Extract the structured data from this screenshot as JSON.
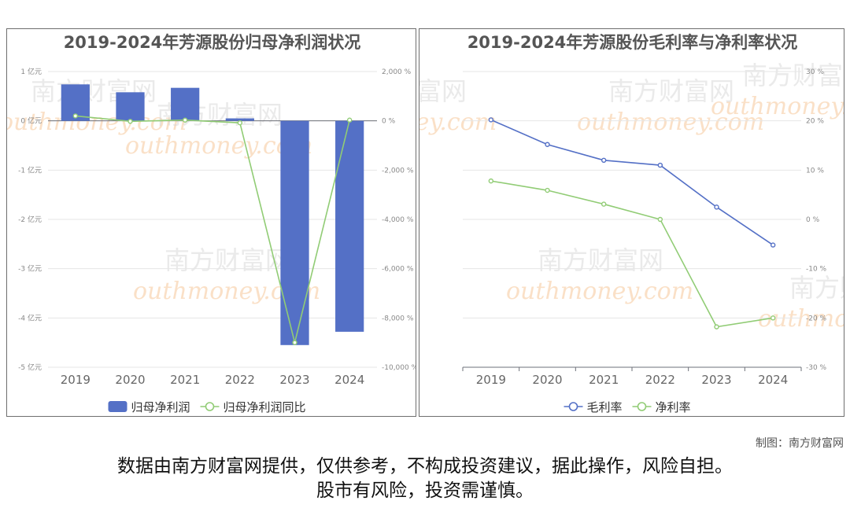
{
  "credit": "制图：南方财富网",
  "disclaimer_line1": "数据由南方财富网提供，仅供参考，不构成投资建议，据此操作，风险自担。",
  "disclaimer_line2": "股市有风险，投资需谨慎。",
  "watermark": {
    "cn": "南方财富网",
    "en": "outhmoney.com"
  },
  "chart_data": [
    {
      "type": "bar",
      "title": "2019-2024年芳源股份归母净利润状况",
      "categories": [
        "2019",
        "2020",
        "2021",
        "2022",
        "2023",
        "2024"
      ],
      "series": [
        {
          "name": "归母净利润",
          "kind": "bar",
          "axis": "left",
          "color": "#5470c6",
          "values": [
            0.74,
            0.58,
            0.67,
            0.05,
            -4.55,
            -4.28
          ]
        },
        {
          "name": "归母净利润同比",
          "kind": "line",
          "axis": "right",
          "color": "#91cc75",
          "values": [
            200,
            -20,
            30,
            -80,
            -9000,
            30
          ]
        }
      ],
      "left_axis": {
        "min": -5,
        "max": 1,
        "ticks": [
          {
            "v": 1,
            "label": "1 亿元"
          },
          {
            "v": 0,
            "label": "0 亿元"
          },
          {
            "v": -1,
            "label": "-1 亿元"
          },
          {
            "v": -2,
            "label": "-2 亿元"
          },
          {
            "v": -3,
            "label": "-3 亿元"
          },
          {
            "v": -4,
            "label": "-4 亿元"
          },
          {
            "v": -5,
            "label": "-5 亿元"
          }
        ]
      },
      "right_axis": {
        "min": -10000,
        "max": 2000,
        "ticks": [
          {
            "v": 2000,
            "label": "2,000 %"
          },
          {
            "v": 0,
            "label": "0 %"
          },
          {
            "v": -2000,
            "label": "-2,000 %"
          },
          {
            "v": -4000,
            "label": "-4,000 %"
          },
          {
            "v": -6000,
            "label": "-6,000 %"
          },
          {
            "v": -8000,
            "label": "-8,000 %"
          },
          {
            "v": -10000,
            "label": "-10,000 %"
          }
        ]
      },
      "grid": true,
      "legend": "bottom"
    },
    {
      "type": "line",
      "title": "2019-2024年芳源股份毛利率与净利率状况",
      "categories": [
        "2019",
        "2020",
        "2021",
        "2022",
        "2023",
        "2024"
      ],
      "series": [
        {
          "name": "毛利率",
          "kind": "line",
          "axis": "right",
          "color": "#5470c6",
          "values": [
            20.2,
            15.2,
            12.0,
            11.0,
            2.5,
            -5.2
          ]
        },
        {
          "name": "净利率",
          "kind": "line",
          "axis": "right",
          "color": "#91cc75",
          "values": [
            7.8,
            5.9,
            3.1,
            0.0,
            -21.8,
            -20.0
          ]
        }
      ],
      "right_axis": {
        "min": -30,
        "max": 30,
        "ticks": [
          {
            "v": 30,
            "label": "30 %"
          },
          {
            "v": 20,
            "label": "20 %"
          },
          {
            "v": 10,
            "label": "10 %"
          },
          {
            "v": 0,
            "label": "0 %"
          },
          {
            "v": -10,
            "label": "-10 %"
          },
          {
            "v": -20,
            "label": "-20 %"
          },
          {
            "v": -30,
            "label": "-30 %"
          }
        ]
      },
      "grid": true,
      "legend": "bottom"
    }
  ]
}
